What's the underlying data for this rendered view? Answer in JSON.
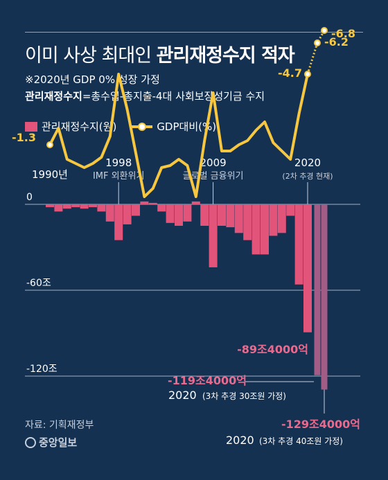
{
  "title": {
    "normal": "이미 사상 최대인 ",
    "bold": "관리재정수지 적자"
  },
  "subtitle_note": "※2020년 GDP 0% 성장 가정",
  "subtitle_def_bold": "관리재정수지",
  "subtitle_def_rest": "=총수입-총지출-4대 사회보장성기금 수지",
  "legend": {
    "bar": "관리재정수지(원)",
    "line": "GDP대비(%)"
  },
  "source": "자료: 기획재정부",
  "logo_text": "중앙일보",
  "colors": {
    "background": "#153152",
    "bar": "#e2547a",
    "bar_scenario": "#a35c86",
    "line": "#f6c73f",
    "grid": "#9fb0c4",
    "annotation_pink": "#ea6a8e"
  },
  "chart_data": {
    "type": "bar",
    "title": "",
    "xlabel": "",
    "ylabel": "",
    "ylim": [
      -135,
      5
    ],
    "y_ticks": [
      {
        "value": 0,
        "label": "0"
      },
      {
        "value": -60,
        "label": "-60조"
      },
      {
        "value": -120,
        "label": "-120조"
      }
    ],
    "x_markers": [
      {
        "year": 1990,
        "label": "1990년"
      },
      {
        "year": 1998,
        "label": "1998",
        "sublabel": "IMF 외환위기"
      },
      {
        "year": 2009,
        "label": "2009",
        "sublabel": "글로벌 금융위기"
      },
      {
        "year": 2020,
        "label": "2020",
        "sublabel": "(2차 추경 현재)"
      }
    ],
    "bar_series": {
      "name": "관리재정수지(원)",
      "unit": "조원",
      "x": [
        1990,
        1991,
        1992,
        1993,
        1994,
        1995,
        1996,
        1997,
        1998,
        1999,
        2000,
        2001,
        2002,
        2003,
        2004,
        2005,
        2006,
        2007,
        2008,
        2009,
        2010,
        2011,
        2012,
        2013,
        2014,
        2015,
        2016,
        2017,
        2018,
        2019,
        2020
      ],
      "values": [
        -2,
        -5,
        -3,
        -2,
        -3,
        -2,
        -5,
        -12,
        -25,
        -14,
        -8,
        2,
        1,
        -5,
        -13,
        -15,
        -12,
        2,
        -15,
        -44,
        -15,
        -16,
        -20,
        -25,
        -35,
        -35,
        -22,
        -20,
        -8,
        -56,
        -89.4
      ]
    },
    "scenario_bars": [
      {
        "label": "2020",
        "note": "(3차 추경 30조원 가정)",
        "value": -119.4,
        "value_label": "-119조4000억"
      },
      {
        "label": "2020",
        "note": "(3차 추경 40조원 가정)",
        "value": -129.4,
        "value_label": "-129조4000억"
      }
    ],
    "current_value_label": "-89조4000억",
    "line_series": {
      "name": "GDP대비(%)",
      "unit": "%",
      "x": [
        1990,
        1991,
        1992,
        1993,
        1994,
        1995,
        1996,
        1997,
        1998,
        1999,
        2000,
        2001,
        2002,
        2003,
        2004,
        2005,
        2006,
        2007,
        2008,
        2009,
        2010,
        2011,
        2012,
        2013,
        2014,
        2015,
        2016,
        2017,
        2018,
        2019,
        2020
      ],
      "values": [
        -1.3,
        -2.1,
        -0.6,
        -0.4,
        -0.2,
        -0.4,
        -0.7,
        -1.7,
        -4.7,
        -3.0,
        -0.9,
        1.2,
        0.8,
        -0.2,
        -0.3,
        -0.6,
        -0.3,
        1.2,
        -1.5,
        -3.8,
        -1.0,
        -1.0,
        -1.3,
        -1.5,
        -2.0,
        -2.4,
        -1.4,
        -1.0,
        -0.6,
        -2.8,
        -4.7
      ],
      "scenario_values": [
        -6.2,
        -6.8
      ],
      "labels": [
        {
          "x": 1990,
          "text": "-1.3"
        },
        {
          "x": 2020,
          "text": "-4.7"
        },
        {
          "scenario": 0,
          "text": "-6.2"
        },
        {
          "scenario": 1,
          "text": "-6.8"
        }
      ]
    }
  }
}
